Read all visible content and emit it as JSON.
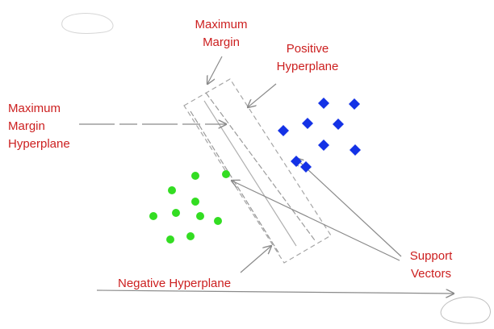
{
  "colors": {
    "label_text": "#cc1f1f",
    "positive_points": "#1432e6",
    "negative_points": "#33dd22",
    "guide_lines": "#9a9a9a",
    "arrows": "#8a8a8a"
  },
  "labels": {
    "maximum_margin": [
      "Maximum",
      "Margin"
    ],
    "positive_hyperplane": [
      "Positive",
      "Hyperplane"
    ],
    "maximum_margin_hyperplane": [
      "Maximum",
      "Margin",
      "Hyperplane"
    ],
    "negative_hyperplane": "Negative Hyperplane",
    "support_vectors": [
      "Support",
      "Vectors"
    ]
  },
  "positive_class": {
    "shape": "diamond",
    "count": 9
  },
  "negative_class": {
    "shape": "circle",
    "count": 10
  }
}
